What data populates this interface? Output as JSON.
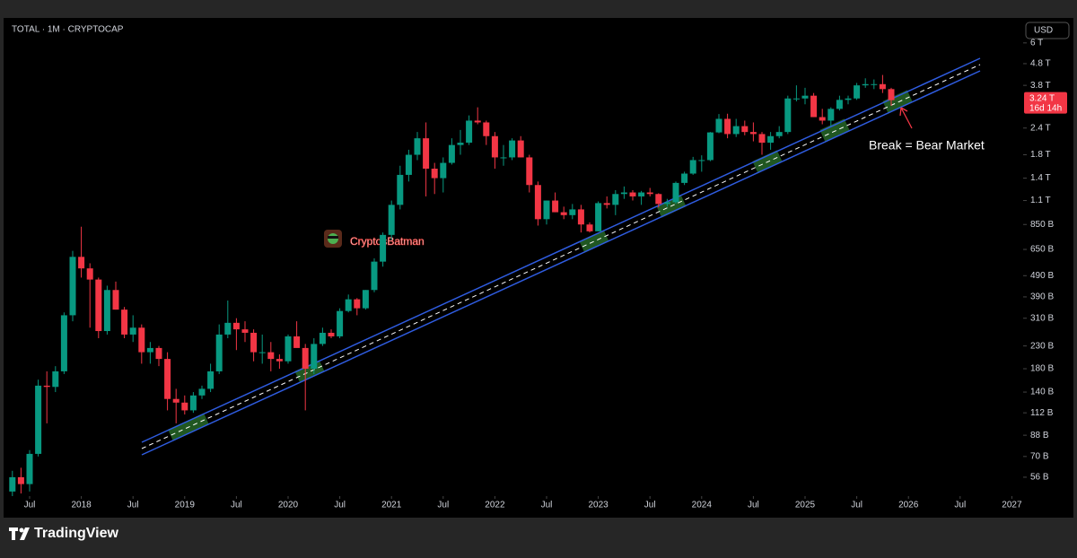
{
  "chart_data": {
    "type": "candlestick",
    "title": "TOTAL · 1M · CRYPTOCAP",
    "currency": "USD",
    "log_scale": true,
    "up_color": "#089981",
    "down_color": "#f23645",
    "x": [
      "2017-05",
      "2017-06",
      "2017-07",
      "2017-08",
      "2017-09",
      "2017-10",
      "2017-11",
      "2017-12",
      "2018-01",
      "2018-02",
      "2018-03",
      "2018-04",
      "2018-05",
      "2018-06",
      "2018-07",
      "2018-08",
      "2018-09",
      "2018-10",
      "2018-11",
      "2018-12",
      "2019-01",
      "2019-02",
      "2019-03",
      "2019-04",
      "2019-05",
      "2019-06",
      "2019-07",
      "2019-08",
      "2019-09",
      "2019-10",
      "2019-11",
      "2019-12",
      "2020-01",
      "2020-02",
      "2020-03",
      "2020-04",
      "2020-05",
      "2020-06",
      "2020-07",
      "2020-08",
      "2020-09",
      "2020-10",
      "2020-11",
      "2020-12",
      "2021-01",
      "2021-02",
      "2021-03",
      "2021-04",
      "2021-05",
      "2021-06",
      "2021-07",
      "2021-08",
      "2021-09",
      "2021-10",
      "2021-11",
      "2021-12",
      "2022-01",
      "2022-02",
      "2022-03",
      "2022-04",
      "2022-05",
      "2022-06",
      "2022-07",
      "2022-08",
      "2022-09",
      "2022-10",
      "2022-11",
      "2022-12",
      "2023-01",
      "2023-02",
      "2023-03",
      "2023-04",
      "2023-05",
      "2023-06",
      "2023-07",
      "2023-08",
      "2023-09",
      "2023-10",
      "2023-11",
      "2023-12",
      "2024-01",
      "2024-02",
      "2024-03",
      "2024-04",
      "2024-05",
      "2024-06",
      "2024-07",
      "2024-08",
      "2024-09",
      "2024-10",
      "2024-11",
      "2024-12",
      "2025-01",
      "2025-02",
      "2025-03",
      "2025-04",
      "2025-05",
      "2025-06",
      "2025-07",
      "2025-08",
      "2025-09",
      "2025-10",
      "2025-11"
    ],
    "open": [
      48,
      56,
      52,
      72,
      150,
      148,
      175,
      320,
      600,
      530,
      470,
      270,
      420,
      340,
      260,
      280,
      215,
      225,
      200,
      130,
      125,
      115,
      135,
      145,
      175,
      260,
      295,
      275,
      265,
      215,
      215,
      200,
      195,
      255,
      225,
      180,
      235,
      265,
      255,
      335,
      380,
      345,
      420,
      570,
      760,
      1050,
      1450,
      1800,
      2150,
      1550,
      1400,
      1650,
      2000,
      2050,
      2600,
      2550,
      2200,
      1750,
      1750,
      2100,
      1750,
      1300,
      900,
      1100,
      970,
      940,
      1000,
      850,
      790,
      1070,
      1050,
      1180,
      1200,
      1150,
      1200,
      1180,
      1060,
      1080,
      1330,
      1470,
      1700,
      1700,
      2290,
      2650,
      2250,
      2450,
      2300,
      2250,
      2050,
      2200,
      2300,
      3300,
      3300,
      3400,
      2700,
      2600,
      2950,
      3250,
      3300,
      3800,
      3850,
      3850,
      3650
    ],
    "high": [
      60,
      62,
      75,
      160,
      175,
      185,
      330,
      640,
      830,
      560,
      480,
      440,
      460,
      350,
      320,
      290,
      240,
      230,
      215,
      145,
      135,
      140,
      150,
      190,
      290,
      375,
      310,
      300,
      275,
      260,
      240,
      210,
      260,
      300,
      235,
      250,
      280,
      275,
      345,
      400,
      385,
      420,
      590,
      780,
      1100,
      1600,
      1900,
      2300,
      2550,
      1650,
      1750,
      2150,
      2350,
      2750,
      3000,
      2600,
      2300,
      2000,
      2150,
      2200,
      1800,
      1350,
      1100,
      1200,
      1030,
      1060,
      1050,
      870,
      1090,
      1150,
      1230,
      1280,
      1230,
      1220,
      1260,
      1190,
      1120,
      1350,
      1500,
      1760,
      1790,
      2300,
      2790,
      2800,
      2650,
      2600,
      2550,
      2300,
      2300,
      2450,
      3400,
      3800,
      3700,
      3500,
      2950,
      3000,
      3400,
      3400,
      3900,
      4100,
      4050,
      4250,
      3700
    ],
    "low": [
      45,
      47,
      48,
      70,
      100,
      140,
      170,
      300,
      480,
      280,
      250,
      260,
      340,
      250,
      240,
      190,
      190,
      185,
      115,
      100,
      110,
      112,
      130,
      140,
      170,
      250,
      220,
      240,
      195,
      190,
      175,
      180,
      190,
      250,
      115,
      170,
      230,
      250,
      250,
      330,
      320,
      340,
      410,
      540,
      720,
      1000,
      1350,
      1700,
      1150,
      1180,
      1200,
      1620,
      1800,
      2000,
      2500,
      2000,
      1550,
      1600,
      1700,
      1750,
      1200,
      840,
      850,
      970,
      900,
      900,
      780,
      780,
      790,
      1010,
      940,
      1120,
      1100,
      1050,
      1150,
      1020,
      1030,
      1060,
      1300,
      1450,
      1500,
      1680,
      2270,
      2150,
      2180,
      2220,
      2080,
      1800,
      1900,
      2150,
      2250,
      3200,
      3100,
      2700,
      2500,
      2450,
      2900,
      3100,
      3250,
      3700,
      3650,
      3500,
      3050
    ],
    "close": [
      56,
      52,
      72,
      150,
      148,
      175,
      320,
      600,
      530,
      470,
      270,
      420,
      340,
      260,
      280,
      215,
      225,
      200,
      130,
      125,
      115,
      135,
      145,
      175,
      260,
      295,
      275,
      265,
      215,
      215,
      200,
      195,
      255,
      225,
      180,
      235,
      265,
      255,
      335,
      380,
      345,
      420,
      570,
      760,
      1050,
      1450,
      1800,
      2150,
      1550,
      1400,
      1650,
      2000,
      2050,
      2600,
      2550,
      2200,
      1750,
      1750,
      2100,
      1750,
      1300,
      900,
      1100,
      970,
      940,
      1000,
      850,
      790,
      1070,
      1050,
      1180,
      1200,
      1150,
      1200,
      1180,
      1060,
      1080,
      1330,
      1470,
      1700,
      1700,
      2290,
      2650,
      2250,
      2450,
      2300,
      2250,
      2050,
      2200,
      2300,
      3300,
      3300,
      3400,
      2700,
      2600,
      2950,
      3250,
      3300,
      3800,
      3850,
      3850,
      3650,
      3240
    ],
    "xlim": [
      "2017-04",
      "2027-02"
    ],
    "xticks": [
      {
        "value": "2017-07",
        "label": "Jul"
      },
      {
        "value": "2018-01",
        "label": "2018"
      },
      {
        "value": "2018-07",
        "label": "Jul"
      },
      {
        "value": "2019-01",
        "label": "2019"
      },
      {
        "value": "2019-07",
        "label": "Jul"
      },
      {
        "value": "2020-01",
        "label": "2020"
      },
      {
        "value": "2020-07",
        "label": "Jul"
      },
      {
        "value": "2021-01",
        "label": "2021"
      },
      {
        "value": "2021-07",
        "label": "Jul"
      },
      {
        "value": "2022-01",
        "label": "2022"
      },
      {
        "value": "2022-07",
        "label": "Jul"
      },
      {
        "value": "2023-01",
        "label": "2023"
      },
      {
        "value": "2023-07",
        "label": "Jul"
      },
      {
        "value": "2024-01",
        "label": "2024"
      },
      {
        "value": "2024-07",
        "label": "Jul"
      },
      {
        "value": "2025-01",
        "label": "2025"
      },
      {
        "value": "2025-07",
        "label": "Jul"
      },
      {
        "value": "2026-01",
        "label": "2026"
      },
      {
        "value": "2026-07",
        "label": "Jul"
      },
      {
        "value": "2027-01",
        "label": "2027"
      }
    ],
    "ylim": [
      45.7,
      7700
    ],
    "yticks": [
      {
        "value": 56,
        "label": "56 B"
      },
      {
        "value": 70,
        "label": "70 B"
      },
      {
        "value": 88,
        "label": "88 B"
      },
      {
        "value": 112,
        "label": "112 B"
      },
      {
        "value": 140,
        "label": "140 B"
      },
      {
        "value": 180,
        "label": "180 B"
      },
      {
        "value": 230,
        "label": "230 B"
      },
      {
        "value": 310,
        "label": "310 B"
      },
      {
        "value": 390,
        "label": "390 B"
      },
      {
        "value": 490,
        "label": "490 B"
      },
      {
        "value": 650,
        "label": "650 B"
      },
      {
        "value": 850,
        "label": "850 B"
      },
      {
        "value": 1100,
        "label": "1.1 T"
      },
      {
        "value": 1400,
        "label": "1.4 T"
      },
      {
        "value": 1800,
        "label": "1.8 T"
      },
      {
        "value": 2400,
        "label": "2.4 T"
      },
      {
        "value": 3800,
        "label": "3.8 T"
      },
      {
        "value": 4800,
        "label": "4.8 T"
      },
      {
        "value": 6000,
        "label": "6 T"
      }
    ],
    "last_price": {
      "value": 3240,
      "label": "3.24 T"
    },
    "countdown": "16d 14h",
    "annotation": "Break = Bear Market",
    "watermark": "CryptosBatman"
  },
  "brand": "TradingView"
}
